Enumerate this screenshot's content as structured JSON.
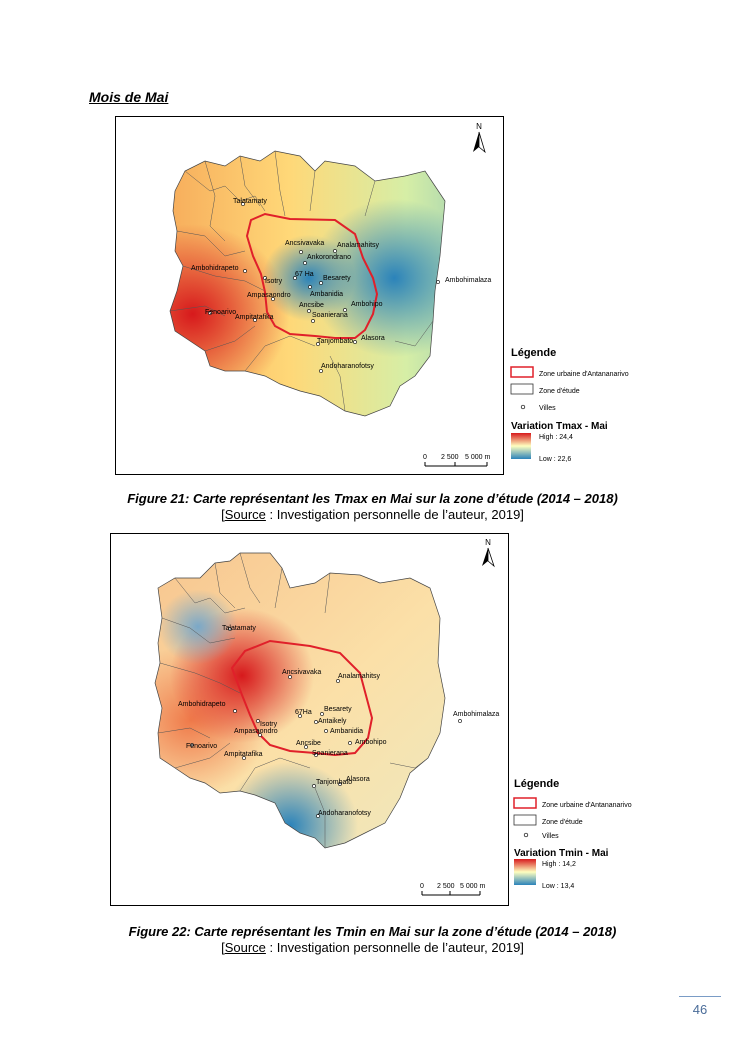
{
  "section_title": "Mois de Mai",
  "maps": [
    {
      "north": "N",
      "legend_title": "Légende",
      "legend_urban": "Zone urbaine d'Antananarivo",
      "legend_study": "Zone d'étude",
      "legend_cities": "Villes",
      "variable_title": "Variation Tmax - Mai",
      "high": "High : 24,4",
      "low": "Low : 22,6",
      "scale_labels": [
        "0",
        "2 500",
        "5 000 m"
      ],
      "colors": {
        "high": "#d7191c",
        "mid": "#ffffbf",
        "low": "#2b83ba"
      },
      "cities": [
        {
          "name": "Talatamaty"
        },
        {
          "name": "Ancsivavaka"
        },
        {
          "name": "Analamahitsy"
        },
        {
          "name": "Ankorondrano"
        },
        {
          "name": "67 Ha"
        },
        {
          "name": "Besarety"
        },
        {
          "name": "Ambohidrapeto"
        },
        {
          "name": "Ambanidia"
        },
        {
          "name": "Isotry"
        },
        {
          "name": "Ampasaondro"
        },
        {
          "name": "Ambohipo"
        },
        {
          "name": "Ancsibe"
        },
        {
          "name": "Fenoarivo"
        },
        {
          "name": "Soanierana"
        },
        {
          "name": "Ampitatafika"
        },
        {
          "name": "Alasora"
        },
        {
          "name": "Tanjombato"
        },
        {
          "name": "Ambohimalaza"
        },
        {
          "name": "Andoharanofotsy"
        }
      ]
    },
    {
      "north": "N",
      "legend_title": "Légende",
      "legend_urban": "Zone urbaine d'Antananarivo",
      "legend_study": "Zone d'étude",
      "legend_cities": "Villes",
      "variable_title": "Variation Tmin - Mai",
      "high": "High : 14,2",
      "low": "Low : 13,4",
      "scale_labels": [
        "0",
        "2 500",
        "5 000 m"
      ],
      "colors": {
        "high": "#d7191c",
        "mid": "#ffffbf",
        "low": "#2b83ba"
      },
      "cities": [
        {
          "name": "Talatamaty"
        },
        {
          "name": "Ancsivavaka"
        },
        {
          "name": "Analamahitsy"
        },
        {
          "name": "67Ha"
        },
        {
          "name": "Besarety"
        },
        {
          "name": "Ambohidrapeto"
        },
        {
          "name": "Antaikely"
        },
        {
          "name": "Ambanidia"
        },
        {
          "name": "Isotry"
        },
        {
          "name": "Ampasaondro"
        },
        {
          "name": "Ambohipo"
        },
        {
          "name": "Ancsibe"
        },
        {
          "name": "Fenoarivo"
        },
        {
          "name": "Soanierana"
        },
        {
          "name": "Ampitatafika"
        },
        {
          "name": "Alasora"
        },
        {
          "name": "Tanjombato"
        },
        {
          "name": "Ambohimalaza"
        },
        {
          "name": "Andoharanofotsy"
        }
      ]
    }
  ],
  "captions": [
    {
      "figure": "Figure 21: Carte représentant les Tmax en Mai sur la zone d’étude (2014 – 2018)",
      "source_word": "Source",
      "source_rest": " : Investigation personnelle de l’auteur, 2019]"
    },
    {
      "figure": "Figure 22: Carte représentant les Tmin en Mai sur la zone d’étude (2014 – 2018)",
      "source_word": "Source",
      "source_rest": " : Investigation personnelle de l’auteur, 2019]"
    }
  ],
  "page_number": "46"
}
